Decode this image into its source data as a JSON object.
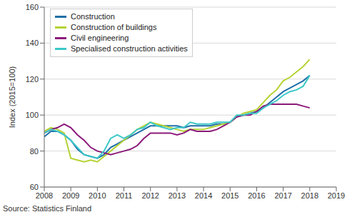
{
  "chart_data": {
    "type": "line",
    "y_label": "Index (2015=100)",
    "source": "Source: Statistics Finland",
    "x": [
      2008,
      2008.25,
      2008.5,
      2008.75,
      2009,
      2009.25,
      2009.5,
      2009.75,
      2010,
      2010.25,
      2010.5,
      2010.75,
      2011,
      2011.25,
      2011.5,
      2011.75,
      2012,
      2012.25,
      2012.5,
      2012.75,
      2013,
      2013.25,
      2013.5,
      2013.75,
      2014,
      2014.25,
      2014.5,
      2014.75,
      2015,
      2015.25,
      2015.5,
      2015.75,
      2016,
      2016.25,
      2016.5,
      2016.75,
      2017,
      2017.25,
      2017.5,
      2017.75,
      2018
    ],
    "series": [
      {
        "name": "Construction",
        "color": "#1f6fa8",
        "values": [
          88,
          91,
          91,
          89,
          86,
          81,
          78,
          77,
          76,
          78,
          82,
          84,
          86,
          88,
          90,
          92,
          94,
          94,
          94,
          94,
          94,
          93,
          94,
          94,
          94,
          94,
          95,
          95,
          96,
          99,
          100,
          101,
          102,
          104,
          107,
          110,
          113,
          115,
          117,
          119,
          122
        ]
      },
      {
        "name": "Construction of buildings",
        "color": "#b5d334",
        "values": [
          91,
          93,
          92,
          90,
          76,
          75,
          74,
          75,
          74,
          77,
          80,
          83,
          86,
          89,
          92,
          94,
          96,
          95,
          94,
          93,
          92,
          91,
          92,
          92,
          92,
          93,
          94,
          95,
          96,
          99,
          101,
          102,
          103,
          107,
          111,
          114,
          119,
          121,
          124,
          127,
          131
        ]
      },
      {
        "name": "Civil engineering",
        "color": "#8b1a7a",
        "values": [
          90,
          92,
          93,
          95,
          93,
          89,
          86,
          82,
          80,
          79,
          78,
          79,
          80,
          81,
          83,
          87,
          90,
          90,
          90,
          90,
          89,
          90,
          92,
          91,
          91,
          91,
          92,
          94,
          96,
          99,
          100,
          100,
          102,
          105,
          106,
          106,
          106,
          106,
          106,
          105,
          104
        ]
      },
      {
        "name": "Specialised construction activities",
        "color": "#3cc8c8",
        "values": [
          90,
          92,
          91,
          89,
          86,
          82,
          78,
          77,
          76,
          80,
          87,
          89,
          87,
          89,
          92,
          93,
          96,
          94,
          93,
          92,
          93,
          93,
          96,
          95,
          95,
          95,
          96,
          96,
          96,
          100,
          100,
          101,
          101,
          104,
          106,
          108,
          111,
          113,
          114,
          116,
          122
        ]
      }
    ],
    "xlim": [
      2008,
      2019
    ],
    "xticks": [
      2008,
      2009,
      2010,
      2011,
      2012,
      2013,
      2014,
      2015,
      2016,
      2017,
      2018,
      2019
    ],
    "ylim": [
      60,
      160
    ],
    "yticks": [
      60,
      80,
      100,
      120,
      140,
      160
    ],
    "grid": true,
    "legend": "upper left"
  }
}
